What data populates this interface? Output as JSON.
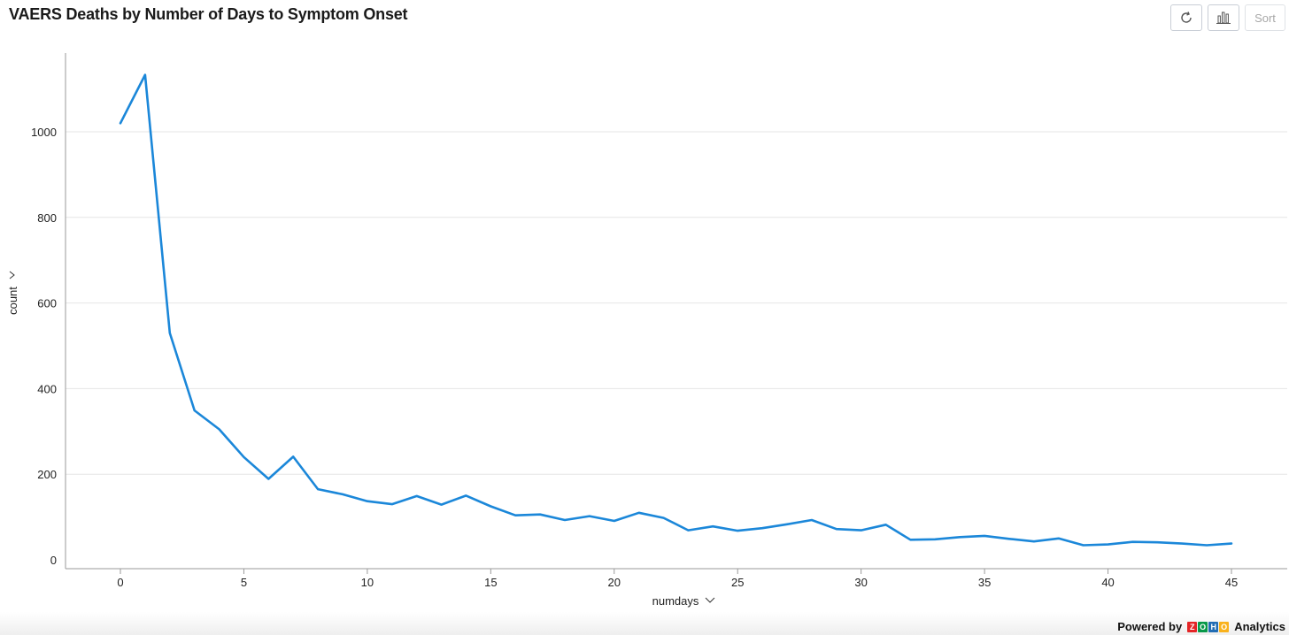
{
  "header": {
    "title": "VAERS Deaths by Number of Days to Symptom Onset"
  },
  "toolbar": {
    "refresh_icon": "refresh-icon",
    "chart_type_icon": "bar-chart-icon",
    "sort_label": "Sort"
  },
  "footer": {
    "powered_label": "Powered by",
    "logo_letters": [
      "Z",
      "O",
      "H",
      "O"
    ],
    "logo_colors": [
      "#e42527",
      "#089949",
      "#226db4",
      "#f9b21d"
    ],
    "product_label": "Analytics"
  },
  "chart_data": {
    "type": "line",
    "xlabel": "numdays",
    "ylabel": "count",
    "xlim": [
      -2,
      46
    ],
    "ylim": [
      0,
      1200
    ],
    "xticks": [
      0,
      5,
      10,
      15,
      20,
      25,
      30,
      35,
      40,
      45
    ],
    "yticks": [
      0,
      200,
      400,
      600,
      800,
      1000
    ],
    "grid": "horizontal",
    "line_color": "#1b87d9",
    "x": [
      0,
      1,
      2,
      3,
      4,
      5,
      6,
      7,
      8,
      9,
      10,
      11,
      12,
      13,
      14,
      15,
      16,
      17,
      18,
      19,
      20,
      21,
      22,
      23,
      24,
      25,
      26,
      27,
      28,
      29,
      30,
      31,
      32,
      33,
      34,
      35,
      36,
      37,
      38,
      39,
      40,
      41,
      42,
      43,
      44,
      45
    ],
    "values": [
      1020,
      1133,
      530,
      349,
      305,
      240,
      189,
      241,
      165,
      153,
      137,
      130,
      149,
      129,
      150,
      125,
      104,
      106,
      93,
      102,
      91,
      110,
      98,
      69,
      78,
      68,
      74,
      83,
      93,
      72,
      69,
      82,
      47,
      48,
      53,
      56,
      49,
      43,
      50,
      34,
      36,
      42,
      41,
      38,
      34,
      38
    ]
  }
}
